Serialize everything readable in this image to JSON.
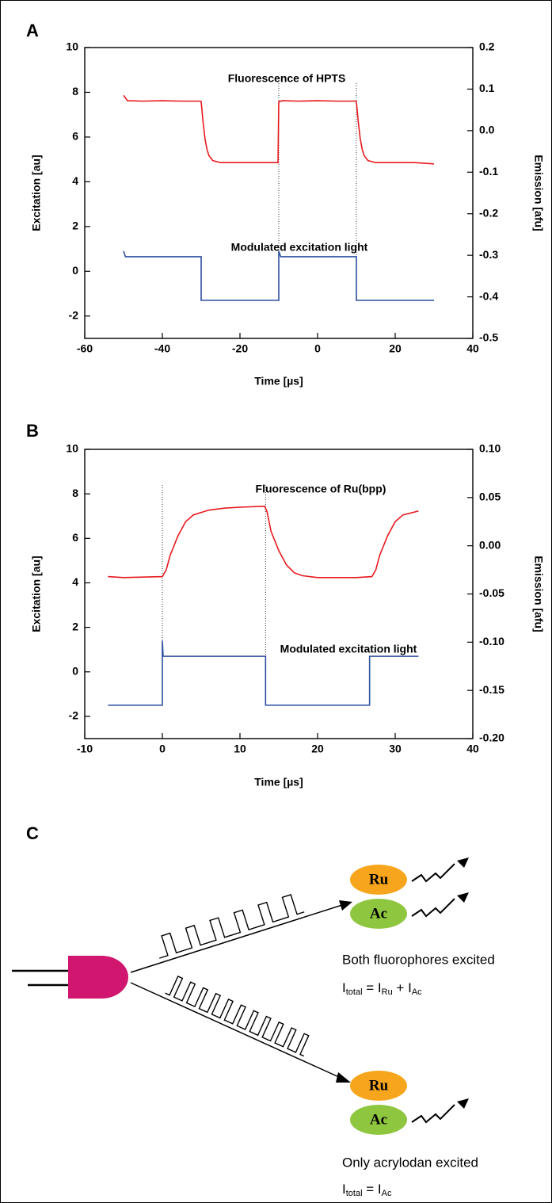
{
  "chart_data": [
    {
      "type": "line",
      "label": "A",
      "title": null,
      "annotations": [
        "Fluorescence of HPTS",
        "Modulated excitation light"
      ],
      "xlabel": "Time [µs]",
      "ylabel": "Excitation [au]",
      "y2label": "Emission [afu]",
      "xlim": [
        -60,
        40
      ],
      "xticks": [
        -60,
        -40,
        -20,
        0,
        20,
        40
      ],
      "ylim": [
        -3,
        10
      ],
      "yticks": [
        -2,
        0,
        2,
        4,
        6,
        8,
        10
      ],
      "y2lim": [
        -0.5,
        0.2
      ],
      "y2ticks": [
        -0.5,
        -0.4,
        -0.3,
        -0.2,
        -0.1,
        {
          "value": 0,
          "label": "0.0"
        },
        0.1,
        0.2
      ],
      "vlines": [
        -10,
        10
      ],
      "series": [
        {
          "name": null,
          "color": "#e8191e",
          "axis": "y2",
          "x": [
            -50,
            -49,
            -45,
            -40,
            -35,
            -30.2,
            -30,
            -29.5,
            -29,
            -28.5,
            -28,
            -27,
            -25,
            -20,
            -15,
            -10.2,
            -10,
            -9,
            -5,
            0,
            5,
            9.8,
            10,
            10.5,
            11,
            11.5,
            12,
            13,
            15,
            20,
            25,
            30
          ],
          "values": [
            0.085,
            0.072,
            0.071,
            0.072,
            0.071,
            0.071,
            0.07,
            0.02,
            -0.02,
            -0.045,
            -0.06,
            -0.072,
            -0.077,
            -0.077,
            -0.077,
            -0.077,
            0.07,
            0.072,
            0.071,
            0.072,
            0.071,
            0.071,
            0.07,
            0.02,
            -0.02,
            -0.045,
            -0.06,
            -0.072,
            -0.077,
            -0.077,
            -0.077,
            -0.08
          ]
        },
        {
          "name": null,
          "color": "#2c4ea0",
          "axis": "y",
          "x": [
            -50,
            -49.5,
            -30,
            -30,
            -10,
            -10,
            -9.5,
            10,
            10,
            30
          ],
          "values": [
            0.9,
            0.65,
            0.65,
            -1.3,
            -1.3,
            0.9,
            0.65,
            0.65,
            -1.3,
            -1.3
          ]
        }
      ]
    },
    {
      "type": "line",
      "label": "B",
      "title": null,
      "annotations": [
        "Fluorescence of Ru(bpp)",
        "Modulated excitation light"
      ],
      "xlabel": "Time [µs]",
      "ylabel": "Excitation [au]",
      "y2label": "Emission [afu]",
      "xlim": [
        -10,
        40
      ],
      "xticks": [
        -10,
        0,
        10,
        20,
        30,
        40
      ],
      "ylim": [
        -3,
        10
      ],
      "yticks": [
        -2,
        0,
        2,
        4,
        6,
        8,
        10
      ],
      "y2lim": [
        -0.2,
        0.1
      ],
      "y2ticks": [
        {
          "value": -0.2,
          "label": "-0.20"
        },
        -0.15,
        {
          "value": -0.1,
          "label": "-0.10"
        },
        -0.05,
        {
          "value": 0,
          "label": "0.00"
        },
        0.05,
        {
          "value": 0.1,
          "label": "0.10"
        }
      ],
      "vlines": [
        0,
        13.3
      ],
      "series": [
        {
          "name": null,
          "color": "#e8191e",
          "axis": "y2",
          "x": [
            -7,
            -5,
            0,
            0.5,
            1,
            2,
            3,
            4,
            6,
            8,
            10,
            13.2,
            13.5,
            14,
            15,
            16,
            17,
            18,
            20,
            25,
            27,
            27.5,
            28,
            29,
            30,
            31,
            33
          ],
          "values": [
            -0.032,
            -0.033,
            -0.032,
            -0.025,
            -0.01,
            0.01,
            0.025,
            0.032,
            0.037,
            0.039,
            0.04,
            0.041,
            0.035,
            0.015,
            -0.005,
            -0.02,
            -0.028,
            -0.031,
            -0.033,
            -0.033,
            -0.032,
            -0.025,
            -0.01,
            0.01,
            0.025,
            0.032,
            0.036
          ]
        },
        {
          "name": null,
          "color": "#2c4ea0",
          "axis": "y",
          "x": [
            -7,
            0,
            0,
            0.1,
            13.3,
            13.3,
            26.7,
            26.7,
            33
          ],
          "values": [
            -1.5,
            -1.5,
            1.4,
            0.7,
            0.7,
            -1.5,
            -1.5,
            0.7,
            0.7
          ]
        }
      ]
    }
  ],
  "diagram": {
    "label": "C",
    "top": {
      "ru": "Ru",
      "ac": "Ac",
      "caption": "Both fluorophores excited",
      "formula": [
        [
          "I",
          "total"
        ],
        [
          " = I",
          "Ru"
        ],
        [
          " + I",
          "Ac"
        ]
      ]
    },
    "bottom": {
      "ru": "Ru",
      "ac": "Ac",
      "caption": "Only acrylodan excited",
      "formula": [
        [
          "I",
          "total"
        ],
        [
          " = I",
          "Ac"
        ]
      ]
    }
  }
}
